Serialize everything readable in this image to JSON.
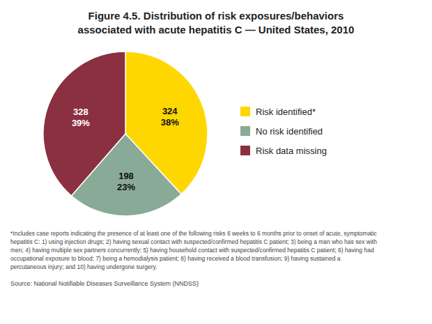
{
  "chart_data": {
    "type": "pie",
    "title": "Figure 4.5. Distribution of risk exposures/behaviors",
    "subtitle": "associated with acute hepatitis C — United States, 2010",
    "categories": [
      "Risk identified*",
      "No risk identified",
      "Risk data missing"
    ],
    "values": [
      324,
      198,
      328
    ],
    "shares": [
      38,
      23,
      39
    ],
    "share_labels": [
      "38%",
      "23%",
      "39%"
    ],
    "colors": [
      "#FFD700",
      "#8aaa98",
      "#8B3040"
    ],
    "data_labels": true,
    "legend": "right",
    "annotations": [
      "*Includes case reports indicating the presence of at least one of the following risks 6 weeks to 6 months prior to onset of acute, symptomatic",
      "hepatitis C:  1) using injection drugs; 2) having sexual contact with suspected/confirmed hepatitis C patient; 3) being a man who has sex with",
      "men; 4) having multiple sex partners concurrently;  5) having household contact with suspected/confirmed hepatitis C patient; 6) having had",
      "occupational exposure to blood;  7) being a hemodialysis patient; 8) having received a blood transfusion; 9)  having sustained a",
      "percutaneous injury;  and 10) having undergone surgery.",
      "Source: National Notifiable Diseases Surveillance System (NNDSS)"
    ]
  }
}
